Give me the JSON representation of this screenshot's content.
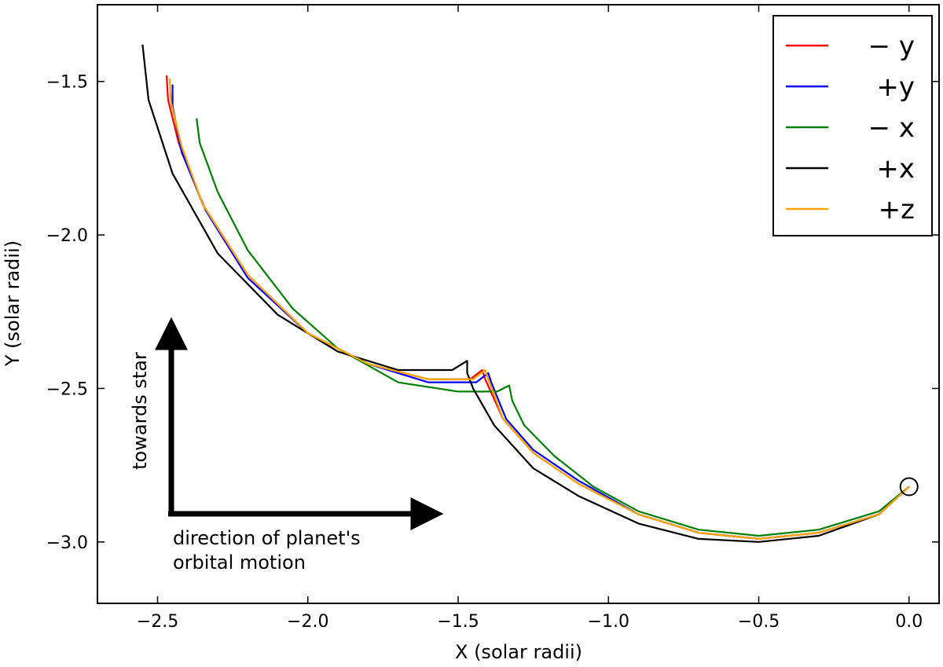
{
  "chart_data": {
    "type": "line",
    "title": "",
    "xlabel": "X (solar radii)",
    "ylabel": "Y (solar radii)",
    "xlim": [
      -2.7,
      0.1
    ],
    "ylim": [
      -3.2,
      -1.25
    ],
    "xticks": [
      -2.5,
      -2.0,
      -1.5,
      -1.0,
      -0.5,
      0.0
    ],
    "xtick_labels": [
      "−2.5",
      "−2.0",
      "−1.5",
      "−1.0",
      "−0.5",
      "0.0"
    ],
    "yticks": [
      -1.5,
      -2.0,
      -2.5,
      -3.0
    ],
    "ytick_labels": [
      "−1.5",
      "−2.0",
      "−2.5",
      "−3.0"
    ],
    "grid": false,
    "legend_position": "top-right",
    "planet": {
      "x": 0.0,
      "y": -2.82,
      "label": "planet"
    },
    "series": [
      {
        "name": "− y",
        "color": "#ff0000",
        "points": [
          [
            0.0,
            -2.82
          ],
          [
            -0.1,
            -2.91
          ],
          [
            -0.3,
            -2.97
          ],
          [
            -0.5,
            -2.99
          ],
          [
            -0.7,
            -2.97
          ],
          [
            -0.9,
            -2.91
          ],
          [
            -1.1,
            -2.81
          ],
          [
            -1.25,
            -2.71
          ],
          [
            -1.35,
            -2.6
          ],
          [
            -1.41,
            -2.47
          ],
          [
            -1.42,
            -2.44
          ],
          [
            -1.46,
            -2.47
          ],
          [
            -1.6,
            -2.47
          ],
          [
            -1.8,
            -2.42
          ],
          [
            -2.0,
            -2.32
          ],
          [
            -2.2,
            -2.13
          ],
          [
            -2.35,
            -1.9
          ],
          [
            -2.43,
            -1.7
          ],
          [
            -2.465,
            -1.56
          ],
          [
            -2.47,
            -1.48
          ]
        ]
      },
      {
        "name": "+y",
        "color": "#0000ff",
        "points": [
          [
            0.0,
            -2.82
          ],
          [
            -0.1,
            -2.91
          ],
          [
            -0.3,
            -2.97
          ],
          [
            -0.5,
            -2.99
          ],
          [
            -0.7,
            -2.97
          ],
          [
            -0.9,
            -2.91
          ],
          [
            -1.1,
            -2.8
          ],
          [
            -1.25,
            -2.7
          ],
          [
            -1.34,
            -2.6
          ],
          [
            -1.39,
            -2.48
          ],
          [
            -1.4,
            -2.45
          ],
          [
            -1.44,
            -2.48
          ],
          [
            -1.6,
            -2.48
          ],
          [
            -1.8,
            -2.42
          ],
          [
            -2.0,
            -2.32
          ],
          [
            -2.2,
            -2.14
          ],
          [
            -2.34,
            -1.92
          ],
          [
            -2.42,
            -1.73
          ],
          [
            -2.45,
            -1.58
          ],
          [
            -2.45,
            -1.51
          ]
        ]
      },
      {
        "name": "− x",
        "color": "#008000",
        "points": [
          [
            0.0,
            -2.82
          ],
          [
            -0.1,
            -2.9
          ],
          [
            -0.3,
            -2.96
          ],
          [
            -0.5,
            -2.98
          ],
          [
            -0.7,
            -2.96
          ],
          [
            -0.9,
            -2.9
          ],
          [
            -1.05,
            -2.82
          ],
          [
            -1.18,
            -2.72
          ],
          [
            -1.28,
            -2.62
          ],
          [
            -1.32,
            -2.54
          ],
          [
            -1.33,
            -2.49
          ],
          [
            -1.37,
            -2.51
          ],
          [
            -1.5,
            -2.51
          ],
          [
            -1.7,
            -2.48
          ],
          [
            -1.9,
            -2.37
          ],
          [
            -2.05,
            -2.24
          ],
          [
            -2.2,
            -2.05
          ],
          [
            -2.3,
            -1.86
          ],
          [
            -2.36,
            -1.7
          ],
          [
            -2.37,
            -1.62
          ]
        ]
      },
      {
        "name": "+x",
        "color": "#000000",
        "points": [
          [
            0.0,
            -2.82
          ],
          [
            -0.1,
            -2.91
          ],
          [
            -0.3,
            -2.98
          ],
          [
            -0.5,
            -3.0
          ],
          [
            -0.7,
            -2.99
          ],
          [
            -0.9,
            -2.94
          ],
          [
            -1.1,
            -2.85
          ],
          [
            -1.25,
            -2.76
          ],
          [
            -1.38,
            -2.62
          ],
          [
            -1.45,
            -2.5
          ],
          [
            -1.47,
            -2.45
          ],
          [
            -1.47,
            -2.41
          ],
          [
            -1.52,
            -2.44
          ],
          [
            -1.7,
            -2.44
          ],
          [
            -1.9,
            -2.38
          ],
          [
            -2.1,
            -2.26
          ],
          [
            -2.3,
            -2.06
          ],
          [
            -2.45,
            -1.8
          ],
          [
            -2.53,
            -1.56
          ],
          [
            -2.55,
            -1.38
          ]
        ]
      },
      {
        "name": "+z",
        "color": "#ffa500",
        "points": [
          [
            0.0,
            -2.82
          ],
          [
            -0.1,
            -2.91
          ],
          [
            -0.3,
            -2.97
          ],
          [
            -0.5,
            -2.99
          ],
          [
            -0.7,
            -2.97
          ],
          [
            -0.9,
            -2.91
          ],
          [
            -1.1,
            -2.81
          ],
          [
            -1.25,
            -2.71
          ],
          [
            -1.35,
            -2.6
          ],
          [
            -1.4,
            -2.47
          ],
          [
            -1.41,
            -2.44
          ],
          [
            -1.45,
            -2.47
          ],
          [
            -1.6,
            -2.47
          ],
          [
            -1.8,
            -2.42
          ],
          [
            -2.0,
            -2.32
          ],
          [
            -2.2,
            -2.13
          ],
          [
            -2.35,
            -1.9
          ],
          [
            -2.42,
            -1.71
          ],
          [
            -2.455,
            -1.57
          ],
          [
            -2.46,
            -1.49
          ]
        ]
      }
    ],
    "annotations": {
      "up_arrow_label": "towards star",
      "right_arrow_line1": "direction of planet's",
      "right_arrow_line2": "orbital motion"
    }
  }
}
